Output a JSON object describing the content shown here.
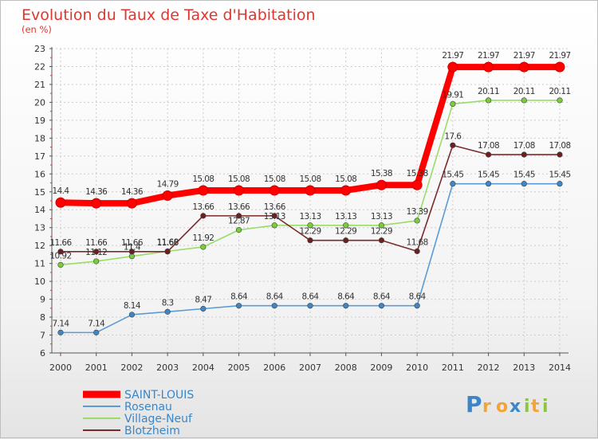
{
  "chart_data": {
    "type": "line",
    "title": "Evolution du Taux de Taxe d'Habitation",
    "subtitle": "(en %)",
    "xlabel": "",
    "ylabel": "",
    "x": [
      "2000",
      "2001",
      "2002",
      "2003",
      "2004",
      "2005",
      "2006",
      "2007",
      "2008",
      "2009",
      "2010",
      "2011",
      "2012",
      "2013",
      "2014"
    ],
    "ylim": [
      6,
      23
    ],
    "yticks": [
      "6",
      "7",
      "8",
      "9",
      "10",
      "11",
      "12",
      "13",
      "14",
      "15",
      "16",
      "17",
      "18",
      "19",
      "20",
      "21",
      "22",
      "23"
    ],
    "grid": true,
    "legend_position": "bottom-left",
    "series": [
      {
        "name": "SAINT-LOUIS",
        "color": "#ff0000",
        "marker_color": "#ff0000",
        "values": [
          14.4,
          14.36,
          14.36,
          14.79,
          15.08,
          15.08,
          15.08,
          15.08,
          15.08,
          15.38,
          15.38,
          21.97,
          21.97,
          21.97,
          21.97
        ],
        "labels": [
          "14.4",
          "14.36",
          "14.36",
          "14.79",
          "15.08",
          "15.08",
          "15.08",
          "15.08",
          "15.08",
          "15.38",
          "15.38",
          "21.97",
          "21.97",
          "21.97",
          "21.97"
        ]
      },
      {
        "name": "Rosenau",
        "color": "#5b9bd5",
        "marker_color": "#3f86c6",
        "values": [
          7.14,
          7.14,
          8.14,
          8.3,
          8.47,
          8.64,
          8.64,
          8.64,
          8.64,
          8.64,
          8.64,
          15.45,
          15.45,
          15.45,
          15.45
        ],
        "labels": [
          "7.14",
          "7.14",
          "8.14",
          "8.3",
          "8.47",
          "8.64",
          "8.64",
          "8.64",
          "8.64",
          "8.64",
          "8.64",
          "15.45",
          "15.45",
          "15.45",
          "15.45"
        ]
      },
      {
        "name": "Village-Neuf",
        "color": "#99dd66",
        "marker_color": "#7acc3a",
        "values": [
          10.92,
          11.12,
          11.4,
          11.68,
          11.92,
          12.87,
          13.13,
          13.13,
          13.13,
          13.13,
          13.39,
          19.91,
          20.11,
          20.11,
          20.11
        ],
        "labels": [
          "10.92",
          "11.12",
          "11.4",
          "11.68",
          "11.92",
          "12.87",
          "13.13",
          "13.13",
          "13.13",
          "13.13",
          "13.39",
          "19.91",
          "20.11",
          "20.11",
          "20.11"
        ]
      },
      {
        "name": "Blotzheim",
        "color": "#7a2a2a",
        "marker_color": "#6b1f1f",
        "values": [
          11.66,
          11.66,
          11.66,
          11.66,
          13.66,
          13.66,
          13.66,
          12.29,
          12.29,
          12.29,
          11.68,
          17.6,
          17.08,
          17.08,
          17.08
        ],
        "labels": [
          "11.66",
          "11.66",
          "11.66",
          "11.66",
          "13.66",
          "13.66",
          "13.66",
          "12.29",
          "12.29",
          "12.29",
          "11.68",
          "17.6",
          "17.08",
          "17.08",
          "17.08"
        ]
      }
    ]
  },
  "logo": {
    "text": "Proxiti",
    "letters": [
      "P",
      "r",
      "o",
      "x",
      "i",
      "t",
      "i"
    ],
    "colors": [
      "#3a86c8",
      "#f2a33a",
      "#f2a33a",
      "#3a86c8",
      "#8cc63f",
      "#f2a33a",
      "#8cc63f"
    ]
  }
}
